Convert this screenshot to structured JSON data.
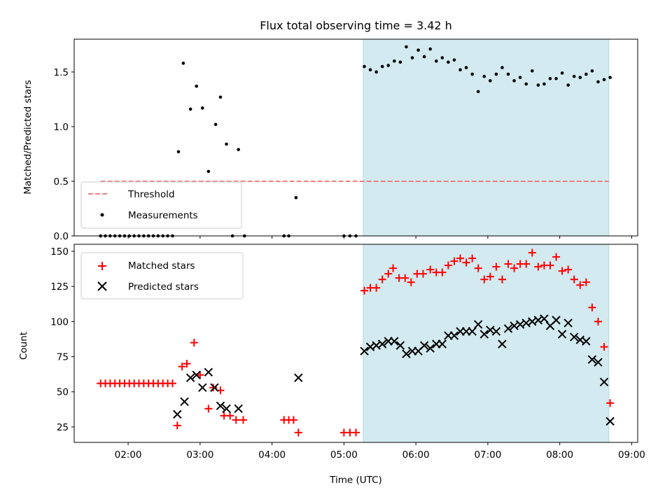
{
  "chart_data": [
    {
      "type": "scatter",
      "title": "Flux total observing time = 3.42 h",
      "xlabel": "",
      "ylabel": "Matched/Predicted stars",
      "xlim": [
        "01:15",
        "09:05"
      ],
      "ylim": [
        0,
        1.8
      ],
      "yticks": [
        "0.0",
        "0.5",
        "1.0",
        "1.5"
      ],
      "legend": {
        "placement": "lower-left",
        "entries": [
          "Threshold",
          "Measurements"
        ]
      },
      "observing_window": {
        "start": "05:16",
        "end": "08:41",
        "color": "#d2eaf0"
      },
      "threshold": {
        "name": "Threshold",
        "value": 0.5,
        "from": "01:37",
        "to": "08:41",
        "color": "#f08080"
      },
      "series": [
        {
          "name": "Measurements",
          "color": "#000000",
          "points": [
            [
              "01:37",
              0
            ],
            [
              "01:41",
              0
            ],
            [
              "01:45",
              0
            ],
            [
              "01:49",
              0
            ],
            [
              "01:53",
              0
            ],
            [
              "01:57",
              0
            ],
            [
              "02:01",
              0
            ],
            [
              "02:05",
              0
            ],
            [
              "02:09",
              0
            ],
            [
              "02:13",
              0
            ],
            [
              "02:17",
              0
            ],
            [
              "02:21",
              0
            ],
            [
              "02:25",
              0
            ],
            [
              "02:29",
              0
            ],
            [
              "02:33",
              0
            ],
            [
              "02:37",
              0
            ],
            [
              "02:42",
              0.77
            ],
            [
              "02:46",
              1.58
            ],
            [
              "02:52",
              1.16
            ],
            [
              "02:57",
              1.37
            ],
            [
              "03:02",
              1.17
            ],
            [
              "03:07",
              0.59
            ],
            [
              "03:13",
              1.02
            ],
            [
              "03:17",
              1.27
            ],
            [
              "03:22",
              0.84
            ],
            [
              "03:27",
              0
            ],
            [
              "03:32",
              0.79
            ],
            [
              "03:37",
              0
            ],
            [
              "04:10",
              0
            ],
            [
              "04:14",
              0
            ],
            [
              "04:20",
              0.35
            ],
            [
              "05:00",
              0
            ],
            [
              "05:05",
              0
            ],
            [
              "05:10",
              0
            ],
            [
              "05:17",
              1.55
            ],
            [
              "05:22",
              1.52
            ],
            [
              "05:27",
              1.5
            ],
            [
              "05:32",
              1.55
            ],
            [
              "05:37",
              1.56
            ],
            [
              "05:42",
              1.6
            ],
            [
              "05:47",
              1.59
            ],
            [
              "05:52",
              1.73
            ],
            [
              "05:57",
              1.63
            ],
            [
              "06:02",
              1.7
            ],
            [
              "06:07",
              1.64
            ],
            [
              "06:12",
              1.71
            ],
            [
              "06:17",
              1.6
            ],
            [
              "06:22",
              1.63
            ],
            [
              "06:27",
              1.59
            ],
            [
              "06:32",
              1.61
            ],
            [
              "06:37",
              1.52
            ],
            [
              "06:42",
              1.54
            ],
            [
              "06:47",
              1.48
            ],
            [
              "06:52",
              1.32
            ],
            [
              "06:57",
              1.46
            ],
            [
              "07:02",
              1.42
            ],
            [
              "07:07",
              1.48
            ],
            [
              "07:12",
              1.54
            ],
            [
              "07:17",
              1.48
            ],
            [
              "07:22",
              1.42
            ],
            [
              "07:27",
              1.45
            ],
            [
              "07:32",
              1.39
            ],
            [
              "07:37",
              1.51
            ],
            [
              "07:42",
              1.38
            ],
            [
              "07:47",
              1.39
            ],
            [
              "07:52",
              1.44
            ],
            [
              "07:57",
              1.44
            ],
            [
              "08:02",
              1.49
            ],
            [
              "08:07",
              1.38
            ],
            [
              "08:12",
              1.46
            ],
            [
              "08:17",
              1.45
            ],
            [
              "08:22",
              1.48
            ],
            [
              "08:27",
              1.51
            ],
            [
              "08:32",
              1.41
            ],
            [
              "08:37",
              1.43
            ],
            [
              "08:42",
              1.45
            ]
          ]
        }
      ]
    },
    {
      "type": "scatter",
      "title": "",
      "xlabel": "Time (UTC)",
      "ylabel": "Count",
      "xlim": [
        "01:15",
        "09:05"
      ],
      "ylim": [
        14,
        155
      ],
      "yticks": [
        "25",
        "50",
        "75",
        "100",
        "125",
        "150"
      ],
      "xticks": [
        "02:00",
        "03:00",
        "04:00",
        "05:00",
        "06:00",
        "07:00",
        "08:00",
        "09:00"
      ],
      "legend": {
        "placement": "upper-left",
        "entries": [
          "Matched stars",
          "Predicted stars"
        ]
      },
      "observing_window": {
        "start": "05:16",
        "end": "08:41",
        "color": "#d2eaf0"
      },
      "series": [
        {
          "name": "Matched stars",
          "marker": "plus",
          "color": "#ff0000",
          "points": [
            [
              "01:37",
              56
            ],
            [
              "01:41",
              56
            ],
            [
              "01:45",
              56
            ],
            [
              "01:49",
              56
            ],
            [
              "01:53",
              56
            ],
            [
              "01:57",
              56
            ],
            [
              "02:01",
              56
            ],
            [
              "02:05",
              56
            ],
            [
              "02:09",
              56
            ],
            [
              "02:13",
              56
            ],
            [
              "02:17",
              56
            ],
            [
              "02:21",
              56
            ],
            [
              "02:25",
              56
            ],
            [
              "02:29",
              56
            ],
            [
              "02:33",
              56
            ],
            [
              "02:37",
              56
            ],
            [
              "02:41",
              26
            ],
            [
              "02:45",
              68
            ],
            [
              "02:49",
              70
            ],
            [
              "02:55",
              85
            ],
            [
              "03:00",
              62
            ],
            [
              "03:07",
              38
            ],
            [
              "03:11",
              53
            ],
            [
              "03:17",
              51
            ],
            [
              "03:20",
              33
            ],
            [
              "03:25",
              33
            ],
            [
              "03:30",
              30
            ],
            [
              "03:36",
              30
            ],
            [
              "04:10",
              30
            ],
            [
              "04:14",
              30
            ],
            [
              "04:18",
              30
            ],
            [
              "04:22",
              21
            ],
            [
              "05:00",
              21
            ],
            [
              "05:05",
              21
            ],
            [
              "05:10",
              21
            ],
            [
              "05:17",
              122
            ],
            [
              "05:22",
              124
            ],
            [
              "05:27",
              124
            ],
            [
              "05:32",
              130
            ],
            [
              "05:37",
              134
            ],
            [
              "05:41",
              138
            ],
            [
              "05:46",
              131
            ],
            [
              "05:51",
              131
            ],
            [
              "05:56",
              128
            ],
            [
              "06:01",
              134
            ],
            [
              "06:06",
              134
            ],
            [
              "06:12",
              137
            ],
            [
              "06:17",
              135
            ],
            [
              "06:22",
              135
            ],
            [
              "06:27",
              140
            ],
            [
              "06:32",
              143
            ],
            [
              "06:37",
              145
            ],
            [
              "06:42",
              142
            ],
            [
              "06:47",
              145
            ],
            [
              "06:52",
              138
            ],
            [
              "06:57",
              130
            ],
            [
              "07:02",
              132
            ],
            [
              "07:07",
              139
            ],
            [
              "07:12",
              130
            ],
            [
              "07:17",
              141
            ],
            [
              "07:22",
              138
            ],
            [
              "07:27",
              141
            ],
            [
              "07:32",
              141
            ],
            [
              "07:37",
              149
            ],
            [
              "07:42",
              139
            ],
            [
              "07:47",
              140
            ],
            [
              "07:52",
              140
            ],
            [
              "07:57",
              146
            ],
            [
              "08:02",
              136
            ],
            [
              "08:07",
              137
            ],
            [
              "08:12",
              130
            ],
            [
              "08:17",
              126
            ],
            [
              "08:22",
              128
            ],
            [
              "08:27",
              110
            ],
            [
              "08:32",
              100
            ],
            [
              "08:37",
              82
            ],
            [
              "08:42",
              42
            ]
          ]
        },
        {
          "name": "Predicted stars",
          "marker": "x",
          "color": "#000000",
          "points": [
            [
              "02:41",
              34
            ],
            [
              "02:47",
              43
            ],
            [
              "02:52",
              60
            ],
            [
              "02:57",
              62
            ],
            [
              "03:02",
              53
            ],
            [
              "03:07",
              64
            ],
            [
              "03:12",
              53
            ],
            [
              "03:17",
              40
            ],
            [
              "03:22",
              38
            ],
            [
              "03:32",
              38
            ],
            [
              "04:22",
              60
            ],
            [
              "05:17",
              79
            ],
            [
              "05:22",
              82
            ],
            [
              "05:27",
              83
            ],
            [
              "05:32",
              84
            ],
            [
              "05:37",
              86
            ],
            [
              "05:42",
              86
            ],
            [
              "05:47",
              83
            ],
            [
              "05:52",
              77
            ],
            [
              "05:57",
              79
            ],
            [
              "06:02",
              79
            ],
            [
              "06:07",
              83
            ],
            [
              "06:12",
              81
            ],
            [
              "06:17",
              84
            ],
            [
              "06:22",
              84
            ],
            [
              "06:27",
              90
            ],
            [
              "06:32",
              90
            ],
            [
              "06:37",
              93
            ],
            [
              "06:42",
              93
            ],
            [
              "06:47",
              93
            ],
            [
              "06:52",
              98
            ],
            [
              "06:57",
              91
            ],
            [
              "07:02",
              94
            ],
            [
              "07:07",
              93
            ],
            [
              "07:12",
              84
            ],
            [
              "07:17",
              95
            ],
            [
              "07:22",
              97
            ],
            [
              "07:27",
              98
            ],
            [
              "07:32",
              99
            ],
            [
              "07:37",
              100
            ],
            [
              "07:42",
              101
            ],
            [
              "07:47",
              102
            ],
            [
              "07:52",
              97
            ],
            [
              "07:57",
              101
            ],
            [
              "08:02",
              91
            ],
            [
              "08:07",
              99
            ],
            [
              "08:12",
              89
            ],
            [
              "08:17",
              87
            ],
            [
              "08:22",
              86
            ],
            [
              "08:27",
              73
            ],
            [
              "08:32",
              71
            ],
            [
              "08:37",
              57
            ],
            [
              "08:42",
              29
            ]
          ]
        }
      ]
    }
  ]
}
